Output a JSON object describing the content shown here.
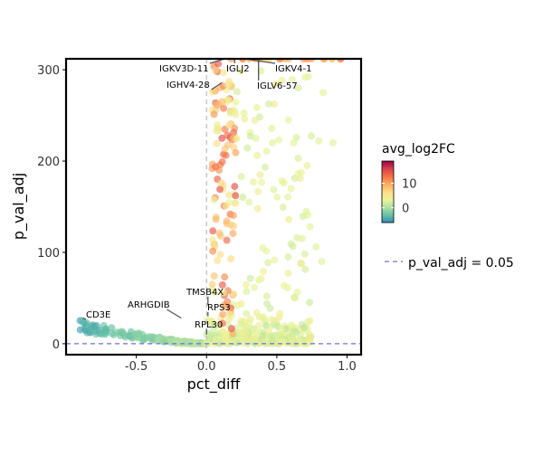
{
  "chart_data": {
    "type": "scatter",
    "xlabel": "pct_diff",
    "ylabel": "p_val_adj",
    "xlim": [
      -1.0,
      1.1
    ],
    "ylim": [
      -12,
      312
    ],
    "x_ticks": [
      -0.5,
      0.0,
      0.5,
      1.0
    ],
    "x_tick_labels": [
      "-0.5",
      "0.0",
      "0.5",
      "1.0"
    ],
    "y_ticks": [
      0,
      100,
      200,
      300
    ],
    "y_tick_labels": [
      "0",
      "100",
      "200",
      "300"
    ],
    "vline_x": 0,
    "hline_y": 0.05,
    "hline_label": "p_val_adj = 0.05",
    "colorbar": {
      "title": "avg_log2FC",
      "range": [
        -6,
        19
      ],
      "ticks": [
        0,
        10
      ],
      "tick_labels": [
        "0",
        "10"
      ],
      "colors": [
        "#3288bd",
        "#66c2a5",
        "#abdda4",
        "#e6f598",
        "#fee08b",
        "#fdae61",
        "#f46d43",
        "#d53e4f",
        "#9e0142"
      ]
    },
    "labeled_points": [
      {
        "gene": "IGKV3D-11",
        "x": 0.13,
        "y": 312
      },
      {
        "gene": "IGLJ2",
        "x": 0.2,
        "y": 312
      },
      {
        "gene": "IGKV4-1",
        "x": 0.27,
        "y": 312
      },
      {
        "gene": "IGHV4-28",
        "x": 0.11,
        "y": 286
      },
      {
        "gene": "IGLV6-57",
        "x": 0.37,
        "y": 312
      },
      {
        "gene": "TMSB4X",
        "x": 0.01,
        "y": 42
      },
      {
        "gene": "RPS3",
        "x": 0.01,
        "y": 30
      },
      {
        "gene": "RPL30",
        "x": 0.0,
        "y": 10
      },
      {
        "gene": "ARHGDIB",
        "x": -0.18,
        "y": 28
      },
      {
        "gene": "CD3E",
        "x": -0.88,
        "y": 28
      }
    ],
    "legend_position": "right"
  }
}
